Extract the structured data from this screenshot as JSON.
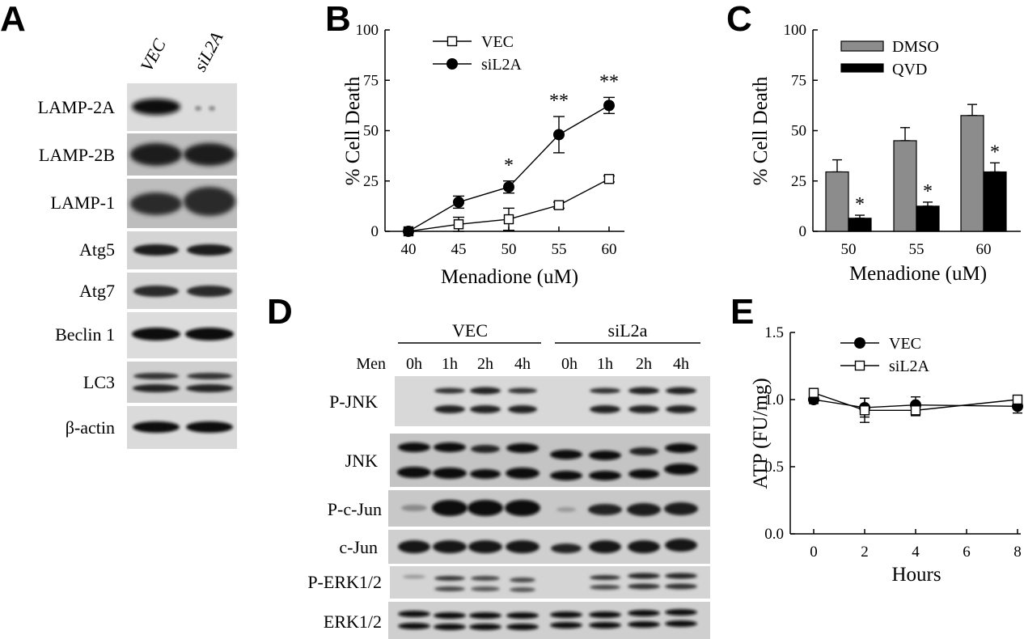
{
  "panels": {
    "A": "A",
    "B": "B",
    "C": "C",
    "D": "D",
    "E": "E"
  },
  "blot_a": {
    "columns": [
      "VEC",
      "siL2A"
    ],
    "rows": [
      "LAMP-2A",
      "LAMP-2B",
      "LAMP-1",
      "Atg5",
      "Atg7",
      "Beclin 1",
      "LC3",
      "β-actin"
    ]
  },
  "blot_d": {
    "groups": [
      "VEC",
      "siL2a"
    ],
    "men_label": "Men",
    "times": [
      "0h",
      "1h",
      "2h",
      "4h",
      "0h",
      "1h",
      "2h",
      "4h"
    ],
    "rows": [
      "P-JNK",
      "JNK",
      "P-c-Jun",
      "c-Jun",
      "P-ERK1/2",
      "ERK1/2"
    ]
  },
  "chart_data": [
    {
      "type": "line",
      "panel": "B",
      "xlabel": "Menadione (uM)",
      "ylabel": "% Cell Death",
      "x": [
        40,
        45,
        50,
        55,
        60
      ],
      "xticks": [
        "40",
        "45",
        "50",
        "55",
        "60"
      ],
      "ylim": [
        0,
        100
      ],
      "yticks": [
        "0",
        "25",
        "50",
        "75",
        "100"
      ],
      "legend_position": "top-left",
      "series": [
        {
          "name": "VEC",
          "marker": "open-square",
          "values": [
            0,
            3.5,
            6,
            13,
            26
          ],
          "errors": [
            0,
            3.5,
            5.5,
            1.5,
            1.5
          ]
        },
        {
          "name": "siL2A",
          "marker": "filled-circle",
          "values": [
            0,
            14.5,
            22,
            48,
            62.5
          ],
          "errors": [
            0,
            3,
            3,
            9,
            4
          ]
        }
      ],
      "significance": [
        {
          "x": 50,
          "label": "*"
        },
        {
          "x": 55,
          "label": "**"
        },
        {
          "x": 60,
          "label": "**"
        }
      ]
    },
    {
      "type": "bar",
      "panel": "C",
      "xlabel": "Menadione (uM)",
      "ylabel": "% Cell Death",
      "categories": [
        "50",
        "55",
        "60"
      ],
      "ylim": [
        0,
        100
      ],
      "yticks": [
        "0",
        "25",
        "50",
        "75",
        "100"
      ],
      "legend_position": "top-left",
      "series": [
        {
          "name": "DMSO",
          "color": "#8c8c8c",
          "values": [
            29.5,
            45,
            57.5
          ],
          "errors": [
            6,
            6.5,
            5.5
          ]
        },
        {
          "name": "QVD",
          "color": "#000000",
          "values": [
            6.5,
            12.5,
            29.5
          ],
          "errors": [
            1.5,
            2,
            4.5
          ]
        }
      ],
      "significance": [
        {
          "category": "50",
          "series": "QVD",
          "label": "*"
        },
        {
          "category": "55",
          "series": "QVD",
          "label": "*"
        },
        {
          "category": "60",
          "series": "QVD",
          "label": "*"
        }
      ]
    },
    {
      "type": "line",
      "panel": "E",
      "xlabel": "Hours",
      "ylabel": "ATP (FU/mg)",
      "x": [
        0,
        2,
        4,
        8
      ],
      "xlim": [
        0,
        8
      ],
      "xticks": [
        "0",
        "2",
        "4",
        "6",
        "8"
      ],
      "ylim": [
        0,
        1.5
      ],
      "yticks": [
        "0.0",
        "0.5",
        "1.0",
        "1.5"
      ],
      "legend_position": "top-left",
      "series": [
        {
          "name": "VEC",
          "marker": "filled-circle",
          "values": [
            1.0,
            0.94,
            0.96,
            0.95
          ],
          "errors": [
            0.03,
            0.07,
            0.06,
            0.05
          ]
        },
        {
          "name": "siL2A",
          "marker": "open-square",
          "values": [
            1.05,
            0.92,
            0.92,
            1.0
          ],
          "errors": [
            0.03,
            0.09,
            0.04,
            0.02
          ]
        }
      ]
    }
  ]
}
